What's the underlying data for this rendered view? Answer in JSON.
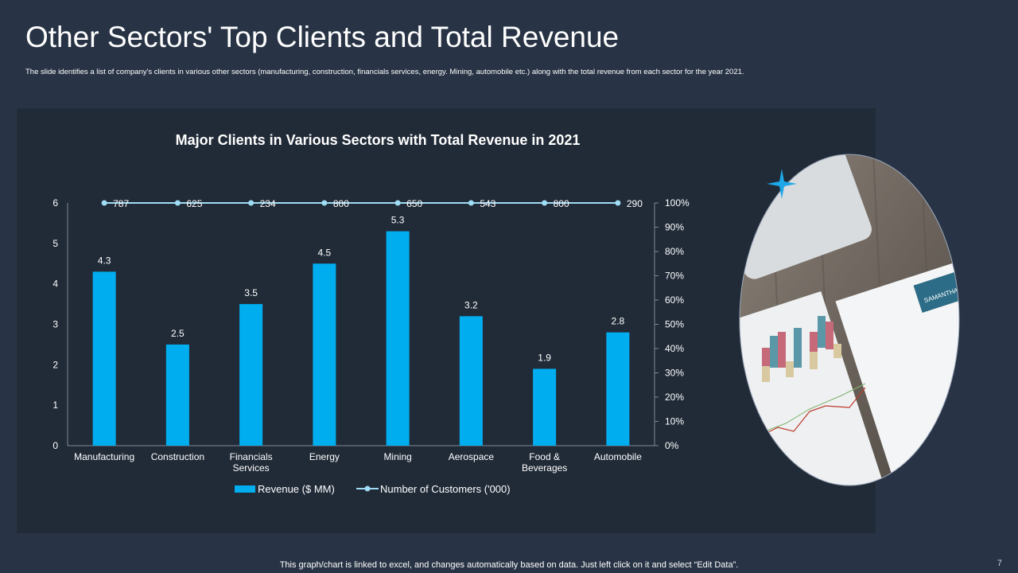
{
  "page": {
    "title": "Other Sectors' Top Clients and Total Revenue",
    "subtitle": "The slide identifies a list of company's clients in various other sectors (manufacturing, construction, financials services, energy. Mining, automobile etc.) along with the total revenue from each sector for the year 2021.",
    "footer": "This graph/chart is linked to excel, and changes automatically based on data. Just left click on it and select “Edit Data”.",
    "page_number": "7"
  },
  "photo": {
    "name_tag": "SAMANTHA BLACK"
  },
  "colors": {
    "background": "#283445",
    "panel": "#212b38",
    "bar": "#00aeef",
    "line": "#9fdcf5",
    "accent_star": "#1ea7e8"
  },
  "chart_data": {
    "type": "bar",
    "title": "Major Clients in Various Sectors with Total Revenue in 2021",
    "categories": [
      "Manufacturing",
      "Construction",
      "Financials Services",
      "Energy",
      "Mining",
      "Aerospace",
      "Food & Beverages",
      "Automobile"
    ],
    "category_lines": [
      [
        "Manufacturing"
      ],
      [
        "Construction"
      ],
      [
        "Financials",
        "Services"
      ],
      [
        "Energy"
      ],
      [
        "Mining"
      ],
      [
        "Aerospace"
      ],
      [
        "Food &",
        "Beverages"
      ],
      [
        "Automobile"
      ]
    ],
    "series": [
      {
        "name": "Revenue ($ MM)",
        "type": "bar",
        "axis": "left",
        "values": [
          4.3,
          2.5,
          3.5,
          4.5,
          5.3,
          3.2,
          1.9,
          2.8
        ]
      },
      {
        "name": "Number of Customers ('000)",
        "type": "line",
        "axis": "right",
        "values": [
          787,
          625,
          234,
          800,
          650,
          543,
          800,
          290
        ],
        "plotted_percent": [
          100,
          100,
          100,
          100,
          100,
          100,
          100,
          100
        ]
      }
    ],
    "bar_labels": [
      "4.3",
      "2.5",
      "3.5",
      "4.5",
      "5.3",
      "3.2",
      "1.9",
      "2.8"
    ],
    "line_labels": [
      "787",
      "625",
      "234",
      "800",
      "650",
      "543",
      "800",
      "290"
    ],
    "ylim": [
      0,
      6
    ],
    "yticks": [
      "0",
      "1",
      "2",
      "3",
      "4",
      "5",
      "6"
    ],
    "y2lim": [
      0,
      100
    ],
    "y2ticks": [
      "0%",
      "10%",
      "20%",
      "30%",
      "40%",
      "50%",
      "60%",
      "70%",
      "80%",
      "90%",
      "100%"
    ],
    "legend": [
      "Revenue ($ MM)",
      "Number of Customers ('000)"
    ],
    "legend_position": "bottom",
    "grid": false
  }
}
